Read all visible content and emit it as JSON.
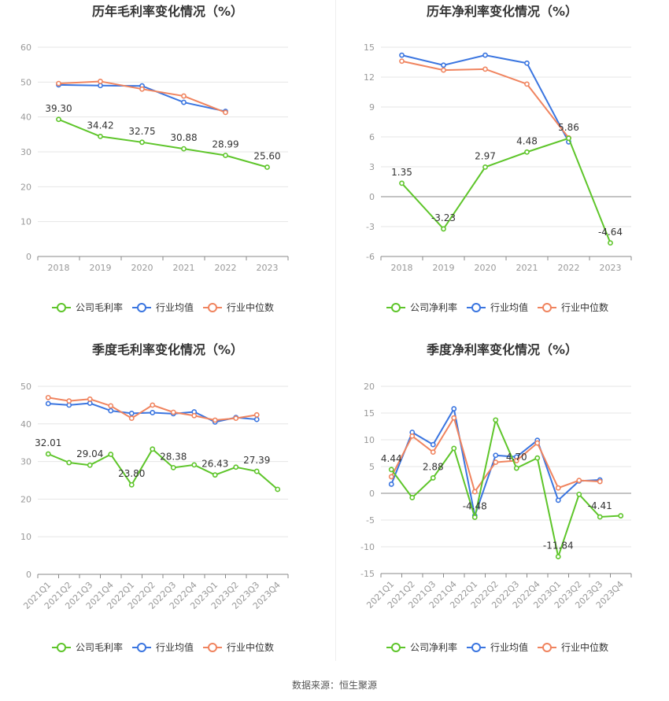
{
  "source_text": "数据来源：恒生聚源",
  "colors": {
    "company": "#5ec52a",
    "avg": "#3a75e0",
    "median": "#f0845f"
  },
  "chart_data": [
    {
      "type": "line",
      "title": "历年毛利率变化情况（%）",
      "categories": [
        "2018",
        "2019",
        "2020",
        "2021",
        "2022",
        "2023"
      ],
      "ylim": [
        0,
        60
      ],
      "yticks": [
        0,
        10,
        20,
        30,
        40,
        50,
        60
      ],
      "grid": true,
      "legend": "bottom",
      "series": [
        {
          "name": "公司毛利率",
          "color": "#5ec52a",
          "values": [
            39.3,
            34.42,
            32.75,
            30.88,
            28.99,
            25.6
          ],
          "labels": [
            "39.30",
            "34.42",
            "32.75",
            "30.88",
            "28.99",
            "25.60"
          ]
        },
        {
          "name": "行业均值",
          "color": "#3a75e0",
          "values": [
            49.2,
            49.0,
            48.9,
            44.2,
            41.6,
            null
          ]
        },
        {
          "name": "行业中位数",
          "color": "#f0845f",
          "values": [
            49.6,
            50.2,
            48.0,
            46.0,
            41.3,
            null
          ]
        }
      ]
    },
    {
      "type": "line",
      "title": "历年净利率变化情况（%）",
      "categories": [
        "2018",
        "2019",
        "2020",
        "2021",
        "2022",
        "2023"
      ],
      "ylim": [
        -6,
        15
      ],
      "yticks": [
        -6,
        -3,
        0,
        3,
        6,
        9,
        12,
        15
      ],
      "grid": true,
      "legend": "bottom",
      "series": [
        {
          "name": "公司净利率",
          "color": "#5ec52a",
          "values": [
            1.35,
            -3.23,
            2.97,
            4.48,
            5.86,
            -4.64
          ],
          "labels": [
            "1.35",
            "-3.23",
            "2.97",
            "4.48",
            "5.86",
            "-4.64"
          ]
        },
        {
          "name": "行业均值",
          "color": "#3a75e0",
          "values": [
            14.2,
            13.2,
            14.2,
            13.4,
            5.5,
            null
          ]
        },
        {
          "name": "行业中位数",
          "color": "#f0845f",
          "values": [
            13.6,
            12.7,
            12.8,
            11.3,
            5.9,
            null
          ]
        }
      ]
    },
    {
      "type": "line",
      "title": "季度毛利率变化情况（%）",
      "categories": [
        "2021Q1",
        "2021Q2",
        "2021Q3",
        "2021Q4",
        "2022Q1",
        "2022Q2",
        "2022Q3",
        "2022Q4",
        "2023Q1",
        "2023Q2",
        "2023Q3",
        "2023Q4"
      ],
      "ylim": [
        0,
        50
      ],
      "yticks": [
        0,
        10,
        20,
        30,
        40,
        50
      ],
      "grid": true,
      "legend": "bottom",
      "series": [
        {
          "name": "公司毛利率",
          "color": "#5ec52a",
          "values": [
            32.01,
            29.7,
            29.04,
            31.9,
            23.8,
            33.3,
            28.38,
            29.1,
            26.43,
            28.5,
            27.39,
            22.6
          ],
          "labels": [
            "32.01",
            "",
            "29.04",
            "",
            "23.80",
            "",
            "28.38",
            "",
            "26.43",
            "",
            "27.39",
            ""
          ]
        },
        {
          "name": "行业均值",
          "color": "#3a75e0",
          "values": [
            45.4,
            45.0,
            45.5,
            43.5,
            42.8,
            43.0,
            42.7,
            43.2,
            40.5,
            41.7,
            41.2,
            null
          ]
        },
        {
          "name": "行业中位数",
          "color": "#f0845f",
          "values": [
            47.0,
            46.1,
            46.6,
            44.8,
            41.5,
            45.0,
            43.1,
            42.2,
            41.0,
            41.5,
            42.4,
            null
          ]
        }
      ]
    },
    {
      "type": "line",
      "title": "季度净利率变化情况（%）",
      "categories": [
        "2021Q1",
        "2021Q2",
        "2021Q3",
        "2021Q4",
        "2022Q1",
        "2022Q2",
        "2022Q3",
        "2022Q4",
        "2023Q1",
        "2023Q2",
        "2023Q3",
        "2023Q4"
      ],
      "ylim": [
        -15,
        20
      ],
      "yticks": [
        -15,
        -10,
        -5,
        0,
        5,
        10,
        15,
        20
      ],
      "grid": true,
      "legend": "bottom",
      "series": [
        {
          "name": "公司净利率",
          "color": "#5ec52a",
          "values": [
            4.44,
            -0.8,
            2.88,
            8.4,
            -4.48,
            13.7,
            4.7,
            6.6,
            -11.84,
            -0.2,
            -4.41,
            -4.2
          ],
          "labels": [
            "4.44",
            "",
            "2.88",
            "",
            "-4.48",
            "",
            "4.70",
            "",
            "-11.84",
            "",
            "-4.41",
            ""
          ]
        },
        {
          "name": "行业均值",
          "color": "#3a75e0",
          "values": [
            1.7,
            11.4,
            9.1,
            15.8,
            -4.2,
            7.1,
            6.8,
            9.9,
            -1.3,
            2.3,
            2.5,
            null
          ]
        },
        {
          "name": "行业中位数",
          "color": "#f0845f",
          "values": [
            3.1,
            10.7,
            7.7,
            14.1,
            0.3,
            5.8,
            6.1,
            9.4,
            1.0,
            2.4,
            2.2,
            null
          ]
        }
      ]
    }
  ]
}
